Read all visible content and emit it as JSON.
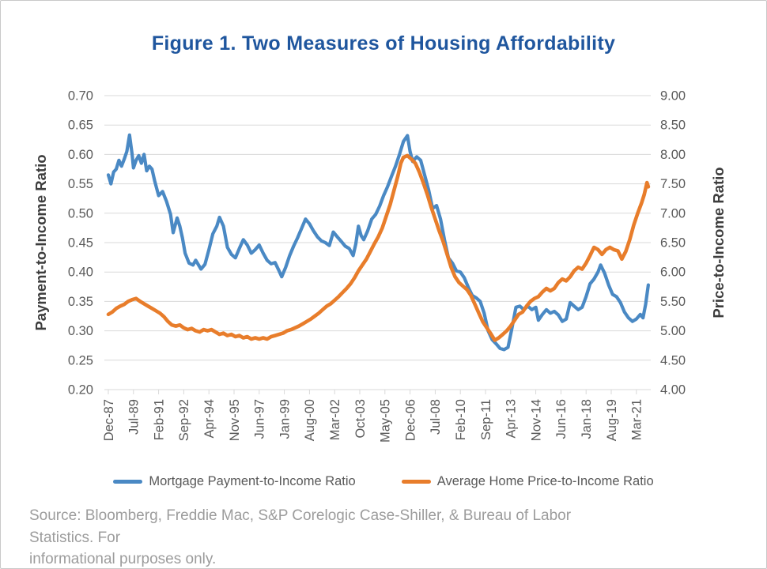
{
  "figure": {
    "title": "Figure 1. Two Measures of Housing Affordability",
    "source_line1": "Source: Bloomberg, Freddie Mac, S&P Corelogic Case-Shiller, & Bureau of Labor Statistics. For",
    "source_line2": "informational purposes only."
  },
  "colors": {
    "title": "#1f569e",
    "gridline": "#d9d9d9",
    "tick_text": "#595959",
    "payment_line": "#4a89c4",
    "price_line": "#e87d2b",
    "source_text": "#9c9c9c"
  },
  "chart_data": {
    "type": "line",
    "title": "Figure 1. Two Measures of Housing Affordability",
    "grid": "horizontal",
    "legend_position": "bottom",
    "x_months_per_tick": 19,
    "x_domain_months": [
      0,
      410
    ],
    "x_tick_labels": [
      "Dec-87",
      "Jul-89",
      "Feb-91",
      "Sep-92",
      "Apr-94",
      "Nov-95",
      "Jun-97",
      "Jan-99",
      "Aug-00",
      "Mar-02",
      "Oct-03",
      "May-05",
      "Dec-06",
      "Jul-08",
      "Feb-10",
      "Sep-11",
      "Apr-13",
      "Nov-14",
      "Jun-16",
      "Jan-18",
      "Aug-19",
      "Mar-21"
    ],
    "left_axis": {
      "label": "Payment-to-Income Ratio",
      "min": 0.2,
      "max": 0.7,
      "step": 0.05
    },
    "right_axis": {
      "label": "Price-to-Income Ratio",
      "min": 4.0,
      "max": 9.0,
      "step": 0.5
    },
    "legend": [
      {
        "name": "Mortgage Payment-to-Income Ratio",
        "color": "#4a89c4"
      },
      {
        "name": "Average Home Price-to-Income Ratio",
        "color": "#e87d2b"
      }
    ],
    "series": [
      {
        "name": "Mortgage Payment-to-Income Ratio",
        "axis": "left",
        "color": "#4a89c4",
        "width": 4.2,
        "key": "mortgage-payment-to-income-line",
        "points": [
          [
            0,
            0.565
          ],
          [
            2,
            0.55
          ],
          [
            4,
            0.57
          ],
          [
            6,
            0.575
          ],
          [
            8,
            0.59
          ],
          [
            10,
            0.58
          ],
          [
            12,
            0.592
          ],
          [
            14,
            0.605
          ],
          [
            16,
            0.633
          ],
          [
            18,
            0.6
          ],
          [
            19,
            0.577
          ],
          [
            21,
            0.59
          ],
          [
            23,
            0.598
          ],
          [
            25,
            0.585
          ],
          [
            27,
            0.6
          ],
          [
            29,
            0.572
          ],
          [
            31,
            0.58
          ],
          [
            33,
            0.575
          ],
          [
            35,
            0.555
          ],
          [
            38,
            0.53
          ],
          [
            41,
            0.537
          ],
          [
            44,
            0.52
          ],
          [
            47,
            0.498
          ],
          [
            49,
            0.467
          ],
          [
            52,
            0.492
          ],
          [
            54,
            0.478
          ],
          [
            56,
            0.458
          ],
          [
            58,
            0.432
          ],
          [
            61,
            0.415
          ],
          [
            64,
            0.412
          ],
          [
            66,
            0.42
          ],
          [
            70,
            0.405
          ],
          [
            73,
            0.413
          ],
          [
            76,
            0.438
          ],
          [
            79,
            0.465
          ],
          [
            82,
            0.478
          ],
          [
            84,
            0.493
          ],
          [
            87,
            0.478
          ],
          [
            90,
            0.442
          ],
          [
            93,
            0.43
          ],
          [
            96,
            0.424
          ],
          [
            99,
            0.44
          ],
          [
            102,
            0.455
          ],
          [
            105,
            0.446
          ],
          [
            108,
            0.432
          ],
          [
            111,
            0.438
          ],
          [
            114,
            0.446
          ],
          [
            117,
            0.432
          ],
          [
            120,
            0.42
          ],
          [
            123,
            0.414
          ],
          [
            126,
            0.416
          ],
          [
            129,
            0.402
          ],
          [
            131,
            0.392
          ],
          [
            134,
            0.408
          ],
          [
            137,
            0.428
          ],
          [
            140,
            0.444
          ],
          [
            143,
            0.458
          ],
          [
            146,
            0.474
          ],
          [
            149,
            0.49
          ],
          [
            152,
            0.482
          ],
          [
            155,
            0.47
          ],
          [
            158,
            0.46
          ],
          [
            161,
            0.453
          ],
          [
            164,
            0.45
          ],
          [
            167,
            0.445
          ],
          [
            170,
            0.468
          ],
          [
            173,
            0.46
          ],
          [
            176,
            0.452
          ],
          [
            179,
            0.444
          ],
          [
            182,
            0.44
          ],
          [
            185,
            0.428
          ],
          [
            187,
            0.448
          ],
          [
            189,
            0.478
          ],
          [
            191,
            0.462
          ],
          [
            193,
            0.455
          ],
          [
            196,
            0.47
          ],
          [
            199,
            0.49
          ],
          [
            202,
            0.498
          ],
          [
            205,
            0.512
          ],
          [
            208,
            0.53
          ],
          [
            211,
            0.545
          ],
          [
            214,
            0.563
          ],
          [
            217,
            0.58
          ],
          [
            220,
            0.6
          ],
          [
            223,
            0.622
          ],
          [
            226,
            0.632
          ],
          [
            228,
            0.605
          ],
          [
            230,
            0.588
          ],
          [
            233,
            0.596
          ],
          [
            236,
            0.59
          ],
          [
            239,
            0.565
          ],
          [
            242,
            0.54
          ],
          [
            245,
            0.508
          ],
          [
            248,
            0.513
          ],
          [
            251,
            0.49
          ],
          [
            254,
            0.455
          ],
          [
            257,
            0.424
          ],
          [
            260,
            0.415
          ],
          [
            263,
            0.402
          ],
          [
            266,
            0.4
          ],
          [
            269,
            0.39
          ],
          [
            272,
            0.374
          ],
          [
            275,
            0.36
          ],
          [
            278,
            0.356
          ],
          [
            281,
            0.35
          ],
          [
            284,
            0.33
          ],
          [
            287,
            0.3
          ],
          [
            290,
            0.285
          ],
          [
            293,
            0.278
          ],
          [
            296,
            0.27
          ],
          [
            299,
            0.268
          ],
          [
            302,
            0.272
          ],
          [
            305,
            0.305
          ],
          [
            308,
            0.34
          ],
          [
            311,
            0.342
          ],
          [
            314,
            0.336
          ],
          [
            317,
            0.342
          ],
          [
            320,
            0.336
          ],
          [
            323,
            0.34
          ],
          [
            325,
            0.318
          ],
          [
            328,
            0.328
          ],
          [
            331,
            0.336
          ],
          [
            334,
            0.33
          ],
          [
            337,
            0.333
          ],
          [
            340,
            0.327
          ],
          [
            343,
            0.316
          ],
          [
            346,
            0.32
          ],
          [
            349,
            0.348
          ],
          [
            352,
            0.342
          ],
          [
            355,
            0.336
          ],
          [
            358,
            0.34
          ],
          [
            361,
            0.358
          ],
          [
            364,
            0.38
          ],
          [
            367,
            0.388
          ],
          [
            370,
            0.4
          ],
          [
            372,
            0.412
          ],
          [
            375,
            0.398
          ],
          [
            378,
            0.378
          ],
          [
            381,
            0.362
          ],
          [
            384,
            0.358
          ],
          [
            387,
            0.348
          ],
          [
            390,
            0.332
          ],
          [
            393,
            0.322
          ],
          [
            396,
            0.316
          ],
          [
            399,
            0.32
          ],
          [
            402,
            0.328
          ],
          [
            404,
            0.322
          ],
          [
            406,
            0.345
          ],
          [
            408,
            0.378
          ]
        ]
      },
      {
        "name": "Average Home Price-to-Income Ratio",
        "axis": "right",
        "color": "#e87d2b",
        "width": 4.6,
        "key": "home-price-to-income-line",
        "points": [
          [
            0,
            5.28
          ],
          [
            3,
            5.32
          ],
          [
            6,
            5.38
          ],
          [
            9,
            5.42
          ],
          [
            12,
            5.45
          ],
          [
            15,
            5.5
          ],
          [
            18,
            5.53
          ],
          [
            21,
            5.55
          ],
          [
            24,
            5.5
          ],
          [
            27,
            5.46
          ],
          [
            30,
            5.42
          ],
          [
            33,
            5.38
          ],
          [
            36,
            5.34
          ],
          [
            39,
            5.3
          ],
          [
            42,
            5.24
          ],
          [
            45,
            5.16
          ],
          [
            48,
            5.1
          ],
          [
            51,
            5.08
          ],
          [
            54,
            5.1
          ],
          [
            57,
            5.05
          ],
          [
            60,
            5.02
          ],
          [
            63,
            5.04
          ],
          [
            66,
            5.0
          ],
          [
            69,
            4.98
          ],
          [
            72,
            5.02
          ],
          [
            75,
            5.0
          ],
          [
            78,
            5.02
          ],
          [
            81,
            4.98
          ],
          [
            84,
            4.94
          ],
          [
            87,
            4.96
          ],
          [
            90,
            4.92
          ],
          [
            93,
            4.94
          ],
          [
            96,
            4.9
          ],
          [
            99,
            4.92
          ],
          [
            102,
            4.88
          ],
          [
            105,
            4.9
          ],
          [
            108,
            4.86
          ],
          [
            111,
            4.88
          ],
          [
            114,
            4.86
          ],
          [
            117,
            4.88
          ],
          [
            120,
            4.86
          ],
          [
            123,
            4.9
          ],
          [
            126,
            4.92
          ],
          [
            129,
            4.94
          ],
          [
            132,
            4.96
          ],
          [
            135,
            5.0
          ],
          [
            138,
            5.02
          ],
          [
            141,
            5.05
          ],
          [
            144,
            5.08
          ],
          [
            147,
            5.12
          ],
          [
            150,
            5.16
          ],
          [
            153,
            5.2
          ],
          [
            156,
            5.25
          ],
          [
            159,
            5.3
          ],
          [
            162,
            5.36
          ],
          [
            165,
            5.42
          ],
          [
            168,
            5.46
          ],
          [
            171,
            5.52
          ],
          [
            174,
            5.58
          ],
          [
            177,
            5.65
          ],
          [
            180,
            5.72
          ],
          [
            183,
            5.8
          ],
          [
            186,
            5.9
          ],
          [
            189,
            6.02
          ],
          [
            192,
            6.12
          ],
          [
            195,
            6.22
          ],
          [
            198,
            6.35
          ],
          [
            201,
            6.48
          ],
          [
            204,
            6.6
          ],
          [
            207,
            6.75
          ],
          [
            210,
            6.95
          ],
          [
            213,
            7.15
          ],
          [
            216,
            7.4
          ],
          [
            219,
            7.65
          ],
          [
            221,
            7.85
          ],
          [
            223,
            7.95
          ],
          [
            226,
            7.98
          ],
          [
            229,
            7.92
          ],
          [
            232,
            7.85
          ],
          [
            235,
            7.7
          ],
          [
            238,
            7.52
          ],
          [
            241,
            7.32
          ],
          [
            244,
            7.1
          ],
          [
            247,
            6.9
          ],
          [
            250,
            6.7
          ],
          [
            253,
            6.52
          ],
          [
            256,
            6.3
          ],
          [
            259,
            6.08
          ],
          [
            262,
            5.92
          ],
          [
            265,
            5.82
          ],
          [
            268,
            5.76
          ],
          [
            271,
            5.7
          ],
          [
            274,
            5.6
          ],
          [
            277,
            5.45
          ],
          [
            280,
            5.3
          ],
          [
            283,
            5.15
          ],
          [
            286,
            5.05
          ],
          [
            289,
            4.95
          ],
          [
            292,
            4.84
          ],
          [
            295,
            4.88
          ],
          [
            298,
            4.94
          ],
          [
            301,
            5.0
          ],
          [
            304,
            5.08
          ],
          [
            307,
            5.18
          ],
          [
            310,
            5.28
          ],
          [
            313,
            5.32
          ],
          [
            316,
            5.42
          ],
          [
            319,
            5.5
          ],
          [
            322,
            5.55
          ],
          [
            325,
            5.58
          ],
          [
            328,
            5.66
          ],
          [
            331,
            5.72
          ],
          [
            334,
            5.68
          ],
          [
            337,
            5.72
          ],
          [
            340,
            5.82
          ],
          [
            343,
            5.88
          ],
          [
            346,
            5.85
          ],
          [
            349,
            5.92
          ],
          [
            352,
            6.02
          ],
          [
            355,
            6.08
          ],
          [
            358,
            6.05
          ],
          [
            361,
            6.15
          ],
          [
            364,
            6.28
          ],
          [
            367,
            6.42
          ],
          [
            370,
            6.38
          ],
          [
            373,
            6.3
          ],
          [
            376,
            6.38
          ],
          [
            379,
            6.42
          ],
          [
            382,
            6.38
          ],
          [
            385,
            6.36
          ],
          [
            388,
            6.22
          ],
          [
            391,
            6.35
          ],
          [
            394,
            6.55
          ],
          [
            397,
            6.8
          ],
          [
            400,
            7.0
          ],
          [
            403,
            7.18
          ],
          [
            405,
            7.32
          ],
          [
            407,
            7.52
          ],
          [
            408,
            7.45
          ]
        ]
      }
    ]
  }
}
